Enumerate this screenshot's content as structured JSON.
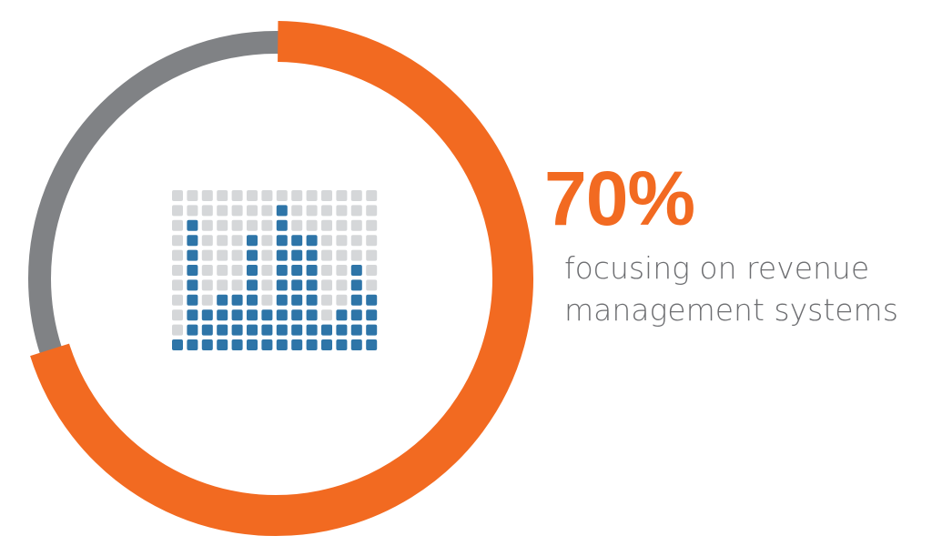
{
  "chart_data": {
    "type": "donut",
    "value": 70,
    "value_label": "70%",
    "ylim": [
      0,
      100
    ],
    "subtitle": "focusing on revenue management systems",
    "color": "#f26a21",
    "track_color": "#808285"
  }
}
